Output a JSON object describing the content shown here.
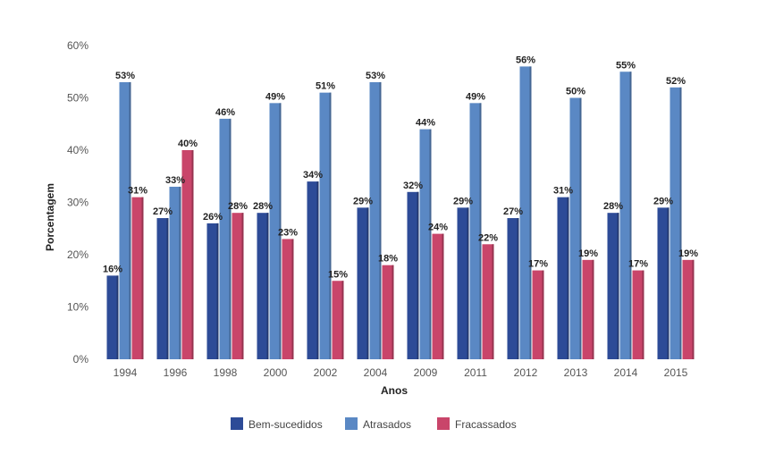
{
  "chart_data": {
    "type": "bar",
    "categories": [
      "1994",
      "1996",
      "1998",
      "2000",
      "2002",
      "2004",
      "2009",
      "2011",
      "2012",
      "2013",
      "2014",
      "2015"
    ],
    "series": [
      {
        "name": "Bem-sucedidos",
        "color": "#2d4b97",
        "values": [
          16,
          27,
          26,
          28,
          34,
          29,
          32,
          29,
          27,
          31,
          28,
          29
        ]
      },
      {
        "name": "Atrasados",
        "color": "#5a88c4",
        "values": [
          53,
          33,
          46,
          49,
          51,
          53,
          44,
          49,
          56,
          50,
          55,
          52
        ]
      },
      {
        "name": "Fracassados",
        "color": "#c9456a",
        "values": [
          31,
          40,
          28,
          23,
          15,
          18,
          24,
          22,
          17,
          19,
          17,
          19
        ]
      }
    ],
    "xlabel": "Anos",
    "ylabel": "Porcentagem",
    "ylim": [
      0,
      60
    ],
    "yticks": [
      "0%",
      "10%",
      "20%",
      "30%",
      "40%",
      "50%",
      "60%"
    ],
    "value_suffix": "%",
    "legend_position": "bottom",
    "grid": false
  }
}
